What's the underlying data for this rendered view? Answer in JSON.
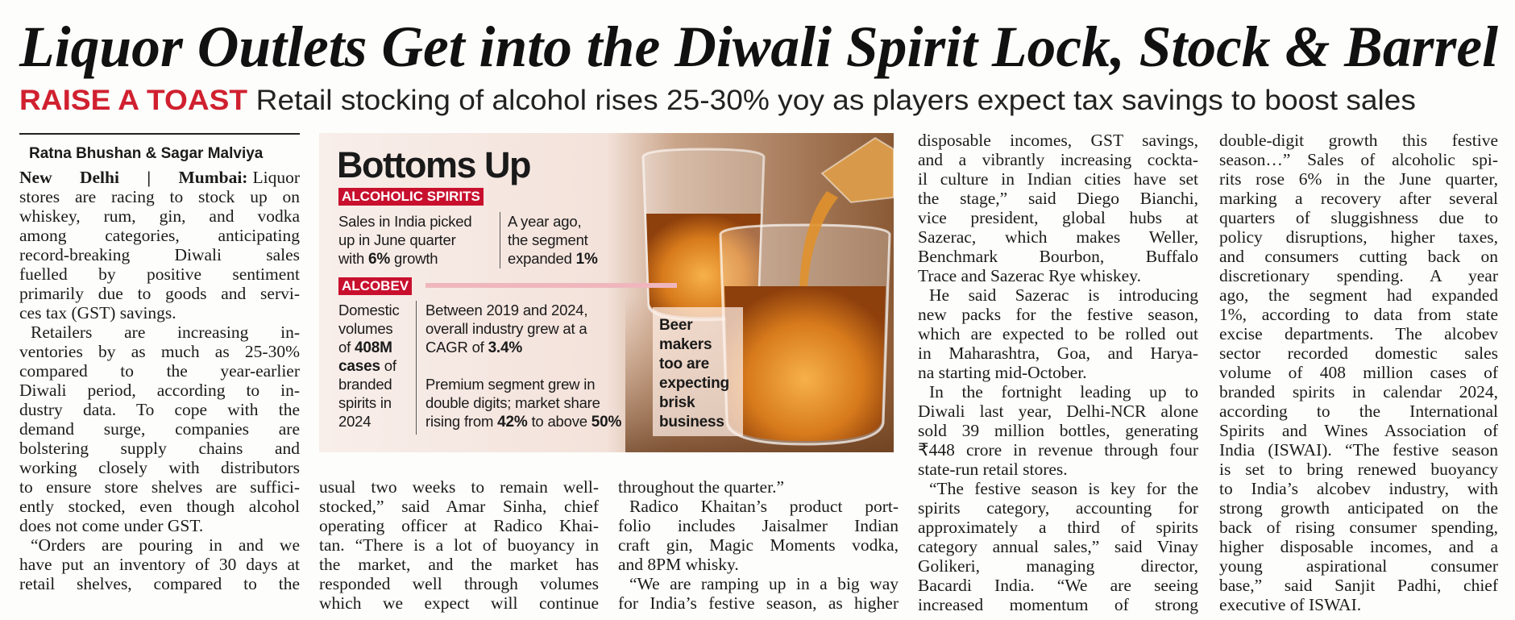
{
  "headline": "Liquor Outlets Get into the Diwali Spirit Lock, Stock & Barrel",
  "kicker": "RAISE A TOAST",
  "deck": "Retail stocking of alcohol rises 25-30% yoy as players expect tax savings to boost sales",
  "byline": "Ratna Bhushan & Sagar Malviya",
  "dateline": "New Delhi | Mumbai:",
  "columns": [
    [
      [
        "Liquor",
        "stores are racing to stock up on",
        "whiskey, rum, gin, and vodka",
        "among categories, anticipating",
        "record-breaking Diwali sales",
        "fuelled by positive sentiment",
        "primarily due to goods and servi-",
        "ces tax (GST) savings."
      ],
      [
        "Retailers are increasing in-",
        "ventories by as much as 25-30%",
        "compared to the year-earlier",
        "Diwali period, according to in-",
        "dustry data. To cope with the",
        "demand surge, companies are",
        "bolstering supply chains and",
        "working closely with distributors",
        "to ensure store shelves are suffici-",
        "ently stocked, even though alcohol",
        "does not come under GST."
      ],
      [
        "“Orders are pouring in and we",
        "have put an inventory of 30 days at",
        "retail shelves, compared to the"
      ]
    ],
    [
      [
        "usual two weeks to remain well-",
        "stocked,” said Amar Sinha, chief",
        "operating officer at Radico Khai-",
        "tan. “There is a lot of buoyancy in",
        "the market, and the market has",
        "responded well through volumes",
        "which we expect will continue"
      ]
    ],
    [
      [
        "throughout the quarter.”"
      ],
      [
        "Radico Khaitan’s product port-",
        "folio includes Jaisalmer Indian",
        "craft gin, Magic Moments vodka,",
        "and 8PM whisky."
      ],
      [
        "“We are ramping up in a big way",
        "for India’s festive season, as higher"
      ]
    ],
    [
      [
        "disposable incomes, GST savings,",
        "and a vibrantly increasing cockta-",
        "il culture in Indian cities have set",
        "the stage,” said Diego Bianchi,",
        "vice president, global hubs at",
        "Sazerac, which makes Weller,",
        "Benchmark Bourbon, Buffalo",
        "Trace and Sazerac Rye whiskey."
      ],
      [
        "He said Sazerac is introducing",
        "new packs for the festive season,",
        "which are expected to be rolled out",
        "in Maharashtra, Goa, and Harya-",
        "na starting mid-October."
      ],
      [
        "In the fortnight leading up to",
        "Diwali last year, Delhi-NCR alone",
        "sold 39 million bottles, generating",
        "₹448 crore in revenue through four",
        "state-run retail stores."
      ],
      [
        "“The festive season is key for the",
        "spirits category, accounting for",
        "approximately a third of spirits",
        "category annual sales,” said Vinay",
        "Golikeri, managing director,",
        "Bacardi India. “We are seeing",
        "increased momentum of strong"
      ]
    ],
    [
      [
        "double-digit growth this festive",
        "season…” Sales of alcoholic spi-",
        "rits rose 6% in the June quarter,",
        "marking a recovery after several",
        "quarters of sluggishness due to",
        "policy disruptions, higher taxes,",
        "and consumers cutting back on",
        "discretionary spending. A year",
        "ago, the segment had expanded",
        "1%, according to data from state",
        "excise departments. The alcobev",
        "sector recorded domestic sales",
        "volume of 408 million cases of",
        "branded spirits in calendar 2024,",
        "according to the International",
        "Spirits and Wines Association of",
        "India (ISWAI). “The festive season",
        "is set to bring renewed buoyancy",
        "to India’s alcobev industry, with",
        "strong growth anticipated on the",
        "back of rising consumer spending,",
        "higher disposable incomes, and a",
        "young aspirational consumer",
        "base,” said Sanjit Padhi, chief",
        "executive of ISWAI."
      ]
    ]
  ],
  "infographic": {
    "title": "Bottoms Up",
    "spirits_label": "ALCOHOLIC SPIRITS",
    "alcobev_label": "ALCOBEV",
    "blocks": {
      "spirits_sales": [
        [
          {
            "text": "Sales in India picked"
          }
        ],
        [
          {
            "text": "up in June quarter"
          }
        ],
        [
          {
            "text": "with "
          },
          {
            "text": "6%",
            "bold": true
          },
          {
            "text": " growth"
          }
        ]
      ],
      "spirits_year_ago": [
        [
          {
            "text": "A year ago,"
          }
        ],
        [
          {
            "text": "the segment"
          }
        ],
        [
          {
            "text": "expanded "
          },
          {
            "text": "1%",
            "bold": true
          }
        ]
      ],
      "alcobev_volume": [
        [
          {
            "text": "Domestic"
          }
        ],
        [
          {
            "text": "volumes"
          }
        ],
        [
          {
            "text": "of "
          },
          {
            "text": "408M",
            "bold": true
          }
        ],
        [
          {
            "text": "cases",
            "bold": true
          },
          {
            "text": " of"
          }
        ],
        [
          {
            "text": "branded"
          }
        ],
        [
          {
            "text": "spirits in"
          }
        ],
        [
          {
            "text": "2024"
          }
        ]
      ],
      "alcobev_growth": [
        [
          {
            "text": "Between 2019 and 2024,"
          }
        ],
        [
          {
            "text": "overall industry grew at a"
          }
        ],
        [
          {
            "text": "CAGR of "
          },
          {
            "text": "3.4%",
            "bold": true
          }
        ]
      ],
      "alcobev_premium": [
        [
          {
            "text": "Premium segment grew in"
          }
        ],
        [
          {
            "text": "double digits; market share"
          }
        ],
        [
          {
            "text": "rising from "
          },
          {
            "text": "42%",
            "bold": true
          },
          {
            "text": " to above "
          },
          {
            "text": "50%",
            "bold": true
          }
        ]
      ],
      "beer": [
        [
          {
            "text": "Beer",
            "bold": true
          }
        ],
        [
          {
            "text": "makers",
            "bold": true
          }
        ],
        [
          {
            "text": "too are",
            "bold": true
          }
        ],
        [
          {
            "text": "expecting",
            "bold": true
          }
        ],
        [
          {
            "text": "brisk",
            "bold": true
          }
        ],
        [
          {
            "text": "business",
            "bold": true
          }
        ]
      ]
    }
  }
}
